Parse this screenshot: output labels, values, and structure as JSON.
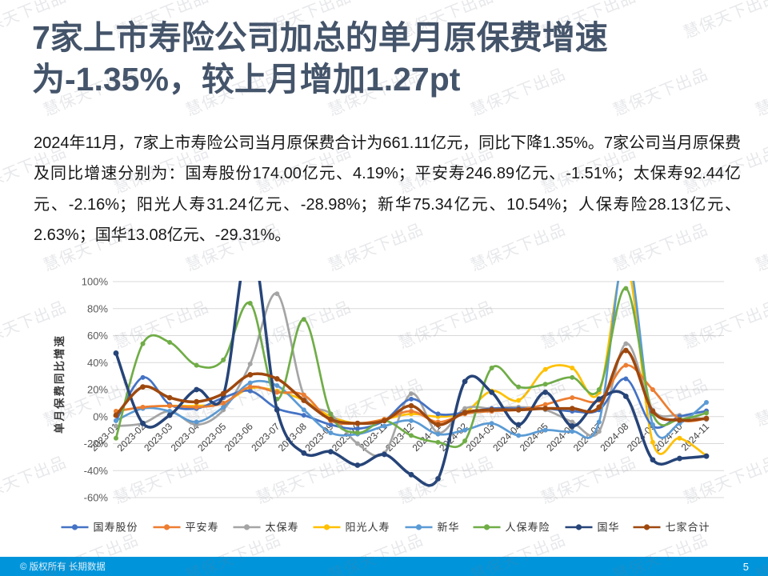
{
  "header": {
    "title": "7家上市寿险公司加总的单月原保费增速为-1.35%，较上月增加1.27pt"
  },
  "intro": {
    "text": "2024年11月，7家上市寿险公司当月原保费合计为661.11亿元，同比下降1.35%。7家公司当月原保费及同比增速分别为：国寿股份174.00亿元、4.19%；平安寿246.89亿元、-1.51%；太保寿92.44亿元、-2.16%；阳光人寿31.24亿元、-28.98%；新华75.34亿元、10.54%；人保寿险28.13亿元、2.63%；国华13.08亿元、-29.31%。"
  },
  "watermark": {
    "text": "慧保天下出品"
  },
  "chart_data": {
    "type": "line",
    "title": "",
    "ylabel": "单月保费同比增速",
    "ylim": [
      -60,
      100
    ],
    "yticks": [
      100,
      80,
      60,
      40,
      20,
      0,
      -20,
      -40,
      -60
    ],
    "ytick_suffix": "%",
    "grid": true,
    "legend_position": "bottom",
    "gridline_color": "#D9D9D9",
    "categories": [
      "2023-01",
      "2023-02",
      "2023-03",
      "2023-04",
      "2023-05",
      "2023-06",
      "2023-07",
      "2023-08",
      "2023-09",
      "2023-10",
      "2023-11",
      "2023-12",
      "2024-01",
      "2024-02",
      "2024-03",
      "2024-04",
      "2024-05",
      "2024-06",
      "2024-07",
      "2024-08",
      "2024-09",
      "2024-10",
      "2024-11"
    ],
    "series": [
      {
        "name": "国寿股份",
        "color": "#4472C4",
        "values": [
          -3,
          29,
          9,
          6,
          14,
          19,
          6,
          1,
          -6,
          -9,
          -3,
          13,
          2,
          3,
          6,
          6,
          6,
          4,
          5,
          28,
          -7,
          0,
          4.19
        ]
      },
      {
        "name": "平安寿",
        "color": "#ED7D31",
        "values": [
          4,
          7,
          8,
          7,
          10,
          22,
          18,
          16,
          -3,
          -5,
          -2,
          4,
          -4,
          2,
          4,
          5,
          9,
          14,
          12,
          38,
          20,
          -2,
          -1.51
        ]
      },
      {
        "name": "太保寿",
        "color": "#A5A5A5",
        "values": [
          -7,
          -5,
          4,
          -6,
          5,
          39,
          91,
          16,
          2,
          -20,
          -27,
          17,
          -12,
          6,
          6,
          7,
          5,
          -4,
          -11,
          54,
          5,
          1,
          -2.16
        ]
      },
      {
        "name": "阳光人寿",
        "color": "#FFC000",
        "values": [
          4,
          7,
          8,
          8,
          10,
          21,
          19,
          12,
          0,
          -5,
          -2,
          2,
          0,
          3,
          19,
          12,
          35,
          36,
          18,
          115,
          -19,
          -16,
          -28.98
        ]
      },
      {
        "name": "新华",
        "color": "#5B9BD5",
        "values": [
          -3,
          6,
          4,
          -4,
          7,
          25,
          23,
          5,
          -12,
          -13,
          -7,
          -3,
          -13,
          -10,
          -5,
          -14,
          -10,
          -11,
          -4,
          122,
          -6,
          -5,
          10.54
        ]
      },
      {
        "name": "人保寿险",
        "color": "#70AD47",
        "values": [
          -16,
          54,
          55,
          38,
          42,
          84,
          13,
          72,
          2,
          -12,
          -3,
          -14,
          -19,
          -18,
          36,
          22,
          24,
          29,
          20,
          95,
          2,
          -2,
          2.63
        ]
      },
      {
        "name": "国华",
        "color": "#264478",
        "values": [
          47,
          -5,
          1,
          20,
          16,
          130,
          5,
          -27,
          -26,
          -36,
          -28,
          -43,
          -46,
          26,
          18,
          -6,
          18,
          -7,
          13,
          15,
          -32,
          -31,
          -29.31
        ]
      },
      {
        "name": "七家合计",
        "color": "#9E480E",
        "values": [
          1,
          22,
          14,
          11,
          17,
          31,
          28,
          12,
          -2,
          -5,
          -3,
          8,
          -6,
          3,
          5,
          5,
          6,
          6,
          7,
          49,
          4,
          -2.62,
          -1.35
        ]
      }
    ]
  },
  "footer": {
    "copyright": "© 版权所有 长期数据",
    "page_number": "5",
    "bar_color": "#0095DB"
  }
}
